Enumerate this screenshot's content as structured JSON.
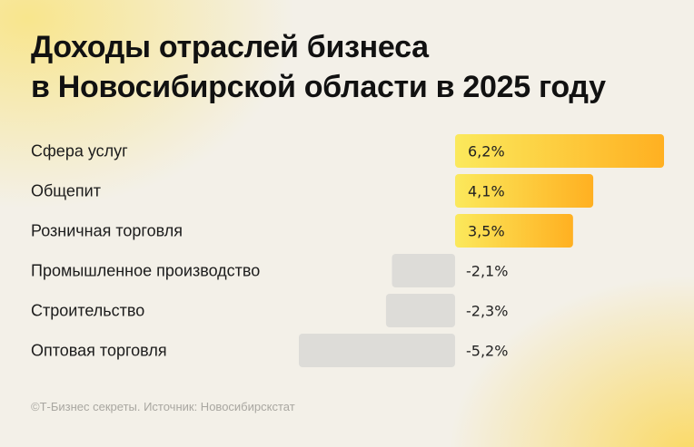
{
  "title_lines": [
    "Доходы отраслей бизнеса",
    "в Новосибирской области в 2025 году"
  ],
  "footer": "©Т-Бизнес секреты. Источник: Новосибирскстат",
  "colors": {
    "positive_start": "#fbe95c",
    "positive_end": "#ffb021",
    "negative": "#dddcd8",
    "text": "#111111"
  },
  "chart_data": {
    "type": "bar",
    "orientation": "horizontal",
    "title": "Доходы отраслей бизнеса в Новосибирской области в 2025 году",
    "unit": "%",
    "categories": [
      "Сфера услуг",
      "Общепит",
      "Розничная торговля",
      "Промышленное производство",
      "Строительство",
      "Оптовая торговля"
    ],
    "values": [
      6.2,
      4.1,
      3.5,
      -2.1,
      -2.3,
      -5.2
    ],
    "value_labels": [
      "6,2%",
      "4,1%",
      "3,5%",
      "-2,1%",
      "-2,3%",
      "-5,2%"
    ],
    "xlim": [
      -5.2,
      6.2
    ],
    "grid": false,
    "legend": "none"
  }
}
